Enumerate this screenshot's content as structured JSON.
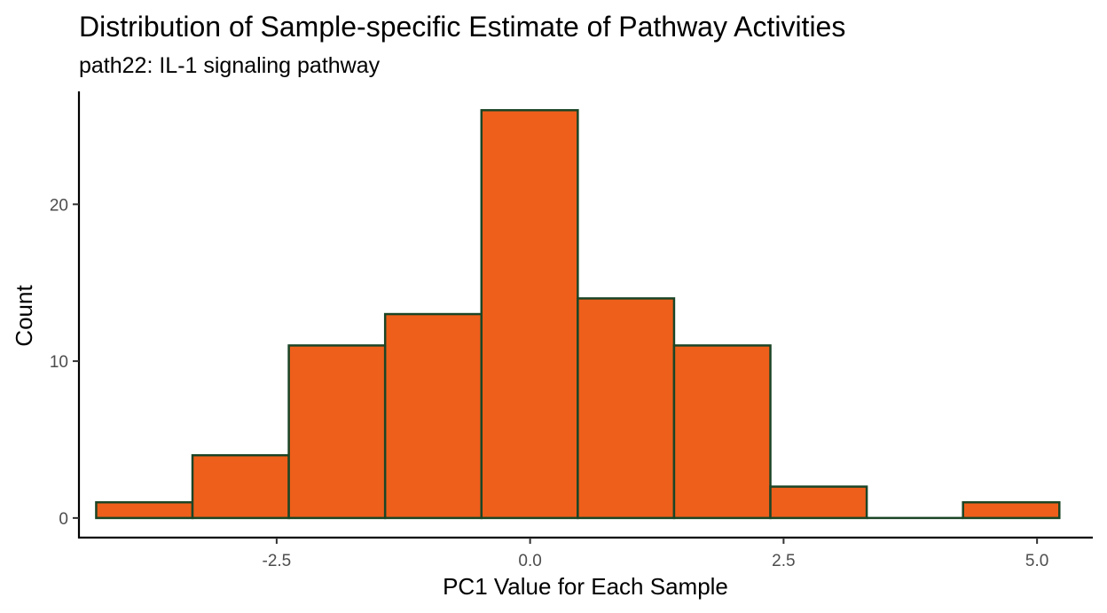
{
  "chart_data": {
    "type": "bar",
    "title": "Distribution of Sample-specific Estimate of Pathway Activities",
    "subtitle": "path22: IL-1 signaling pathway",
    "xlabel": "PC1 Value for Each Sample",
    "ylabel": "Count",
    "xlim": [
      -4.45,
      5.55
    ],
    "ylim": [
      -1.25,
      27.2
    ],
    "x_ticks": [
      -2.5,
      0.0,
      2.5,
      5.0
    ],
    "x_tick_labels": [
      "-2.5",
      "0.0",
      "2.5",
      "5.0"
    ],
    "y_ticks": [
      0,
      10,
      20
    ],
    "y_tick_labels": [
      "0",
      "10",
      "20"
    ],
    "bin_edges": [
      -4.28,
      -3.33,
      -2.38,
      -1.43,
      -0.48,
      0.47,
      1.42,
      2.37,
      3.32,
      4.27,
      5.22
    ],
    "values": [
      1,
      4,
      11,
      13,
      26,
      14,
      11,
      2,
      0,
      1
    ],
    "grid": false,
    "legend": "none",
    "colors": {
      "fill": "#ee5f1b",
      "outline": "#1b4526",
      "axis": "#000000"
    }
  }
}
